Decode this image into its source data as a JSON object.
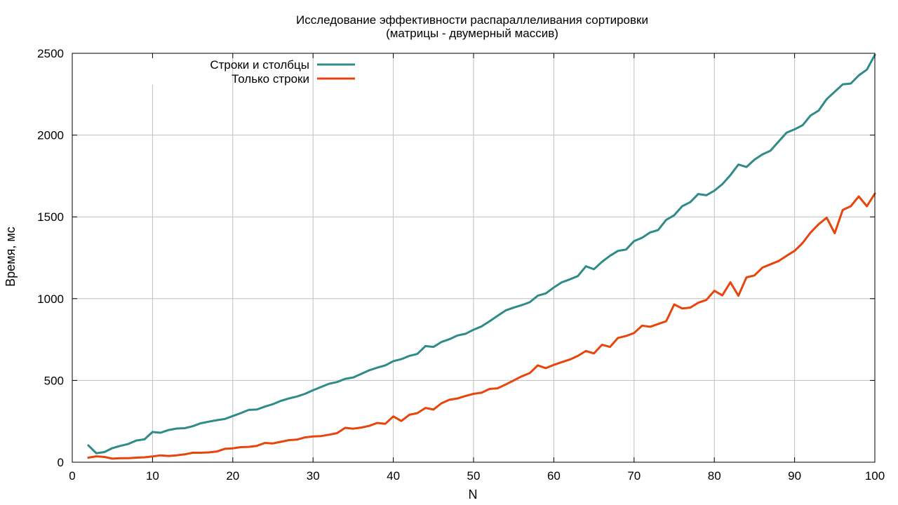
{
  "chart_data": {
    "type": "line",
    "title": "Исследование эффективности распараллеливания сортировки",
    "subtitle": "(матрицы - двумерный массив)",
    "xlabel": "N",
    "ylabel": "Время, мс",
    "xlim": [
      0,
      100
    ],
    "ylim": [
      0,
      2500
    ],
    "xticks": [
      "0",
      "10",
      "20",
      "30",
      "40",
      "50",
      "60",
      "70",
      "80",
      "90",
      "100"
    ],
    "yticks": [
      "0",
      "500",
      "1000",
      "1500",
      "2000",
      "2500"
    ],
    "grid": true,
    "legend_position": "top-left",
    "x": [
      2,
      3,
      4,
      5,
      6,
      7,
      8,
      9,
      10,
      11,
      12,
      13,
      14,
      15,
      16,
      17,
      18,
      19,
      20,
      21,
      22,
      23,
      24,
      25,
      26,
      27,
      28,
      29,
      30,
      31,
      32,
      33,
      34,
      35,
      36,
      37,
      38,
      39,
      40,
      41,
      42,
      43,
      44,
      45,
      46,
      47,
      48,
      49,
      50,
      51,
      52,
      53,
      54,
      55,
      56,
      57,
      58,
      59,
      60,
      61,
      62,
      63,
      64,
      65,
      66,
      67,
      68,
      69,
      70,
      71,
      72,
      73,
      74,
      75,
      76,
      77,
      78,
      79,
      80,
      81,
      82,
      83,
      84,
      85,
      86,
      87,
      88,
      89,
      90,
      91,
      92,
      93,
      94,
      95,
      96,
      97,
      98,
      99,
      100
    ],
    "series": [
      {
        "name": "Строки и столбцы",
        "color": "#2e8b87",
        "values": [
          103,
          55,
          62,
          86,
          100,
          112,
          133,
          140,
          185,
          180,
          197,
          206,
          208,
          220,
          238,
          248,
          257,
          264,
          282,
          300,
          320,
          322,
          340,
          355,
          375,
          390,
          402,
          418,
          440,
          460,
          480,
          490,
          510,
          518,
          540,
          562,
          578,
          592,
          618,
          630,
          650,
          662,
          710,
          705,
          735,
          752,
          775,
          785,
          810,
          830,
          862,
          895,
          928,
          945,
          960,
          978,
          1018,
          1032,
          1068,
          1100,
          1118,
          1138,
          1198,
          1180,
          1225,
          1262,
          1292,
          1300,
          1352,
          1372,
          1405,
          1420,
          1482,
          1510,
          1565,
          1590,
          1640,
          1632,
          1660,
          1700,
          1755,
          1820,
          1805,
          1850,
          1882,
          1905,
          1960,
          2015,
          2035,
          2060,
          2120,
          2150,
          2220,
          2265,
          2310,
          2315,
          2365,
          2400,
          2490
        ]
      },
      {
        "name": "Только строки",
        "color": "#e8440c",
        "values": [
          28,
          36,
          32,
          22,
          25,
          25,
          28,
          30,
          35,
          42,
          38,
          42,
          48,
          58,
          58,
          60,
          65,
          82,
          85,
          92,
          94,
          100,
          118,
          115,
          125,
          135,
          138,
          152,
          158,
          160,
          168,
          178,
          210,
          205,
          212,
          222,
          240,
          235,
          280,
          252,
          290,
          300,
          332,
          322,
          360,
          382,
          390,
          405,
          418,
          425,
          448,
          452,
          475,
          500,
          525,
          545,
          592,
          575,
          595,
          612,
          628,
          650,
          680,
          665,
          718,
          705,
          760,
          772,
          790,
          835,
          828,
          845,
          862,
          965,
          940,
          945,
          975,
          992,
          1048,
          1020,
          1100,
          1018,
          1130,
          1142,
          1190,
          1210,
          1230,
          1262,
          1292,
          1340,
          1405,
          1455,
          1495,
          1400,
          1542,
          1565,
          1625,
          1565,
          1642
        ]
      }
    ]
  }
}
